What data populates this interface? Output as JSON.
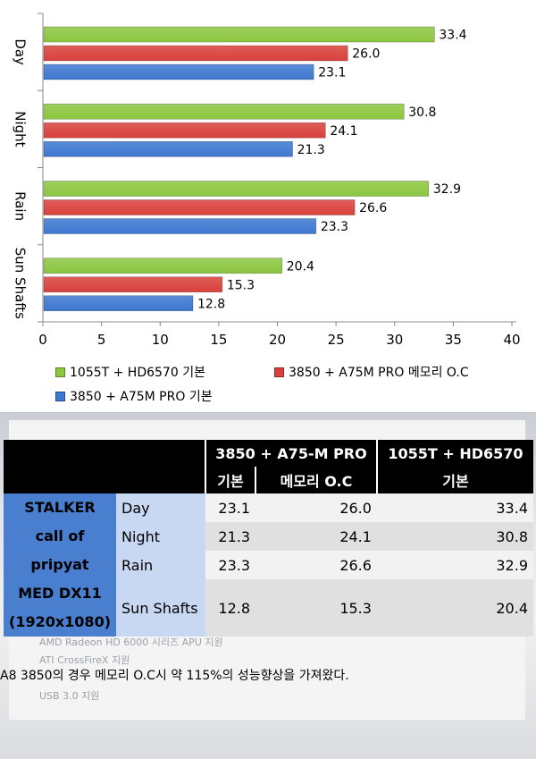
{
  "chart_data": {
    "type": "bar",
    "orientation": "horizontal",
    "categories": [
      "Day",
      "Night",
      "Rain",
      "Sun Shafts"
    ],
    "series": [
      {
        "name": "1055T + HD6570 기본",
        "values": [
          33.4,
          30.8,
          32.9,
          20.4
        ],
        "color": "#8cc63f"
      },
      {
        "name": "3850 + A75M PRO 메모리 O.C",
        "values": [
          26.0,
          24.1,
          26.6,
          15.3
        ],
        "color": "#d9403b"
      },
      {
        "name": "3850 + A75M PRO 기본",
        "values": [
          23.1,
          21.3,
          23.3,
          12.8
        ],
        "color": "#3d78d0"
      }
    ],
    "value_labels": [
      [
        "33.4",
        "26.0",
        "23.1"
      ],
      [
        "30.8",
        "24.1",
        "21.3"
      ],
      [
        "32.9",
        "26.6",
        "23.3"
      ],
      [
        "20.4",
        "15.3",
        "12.8"
      ]
    ],
    "xlim": [
      0,
      40
    ],
    "xticks": [
      "0",
      "5",
      "10",
      "15",
      "20",
      "25",
      "30",
      "35",
      "40"
    ],
    "legend_position": "bottom"
  },
  "table": {
    "group_headers": [
      "3850 + A75-M PRO",
      "1055T + HD6570"
    ],
    "sub_headers": [
      "기본",
      "메모리 O.C",
      "기본"
    ],
    "game_label": [
      "STALKER",
      "call of",
      "pripyat",
      "MED DX11",
      "(1920x1080)"
    ],
    "rows": [
      {
        "condition": "Day",
        "v1": "23.1",
        "v2": "26.0",
        "v3": "33.4"
      },
      {
        "condition": "Night",
        "v1": "21.3",
        "v2": "24.1",
        "v3": "30.8"
      },
      {
        "condition": "Rain",
        "v1": "23.3",
        "v2": "26.6",
        "v3": "32.9"
      },
      {
        "condition": "Sun Shafts",
        "v1": "12.8",
        "v2": "15.3",
        "v3": "20.4"
      }
    ]
  },
  "background_text": [
    "AMD Radeon HD 6000 시리즈 APU 지원",
    "ATI CrossFireX 지원",
    "USB 3.0 지원"
  ],
  "caption": "A8 3850의 경우 메모리 O.C시 약 115%의 성능향상을 가져왔다."
}
